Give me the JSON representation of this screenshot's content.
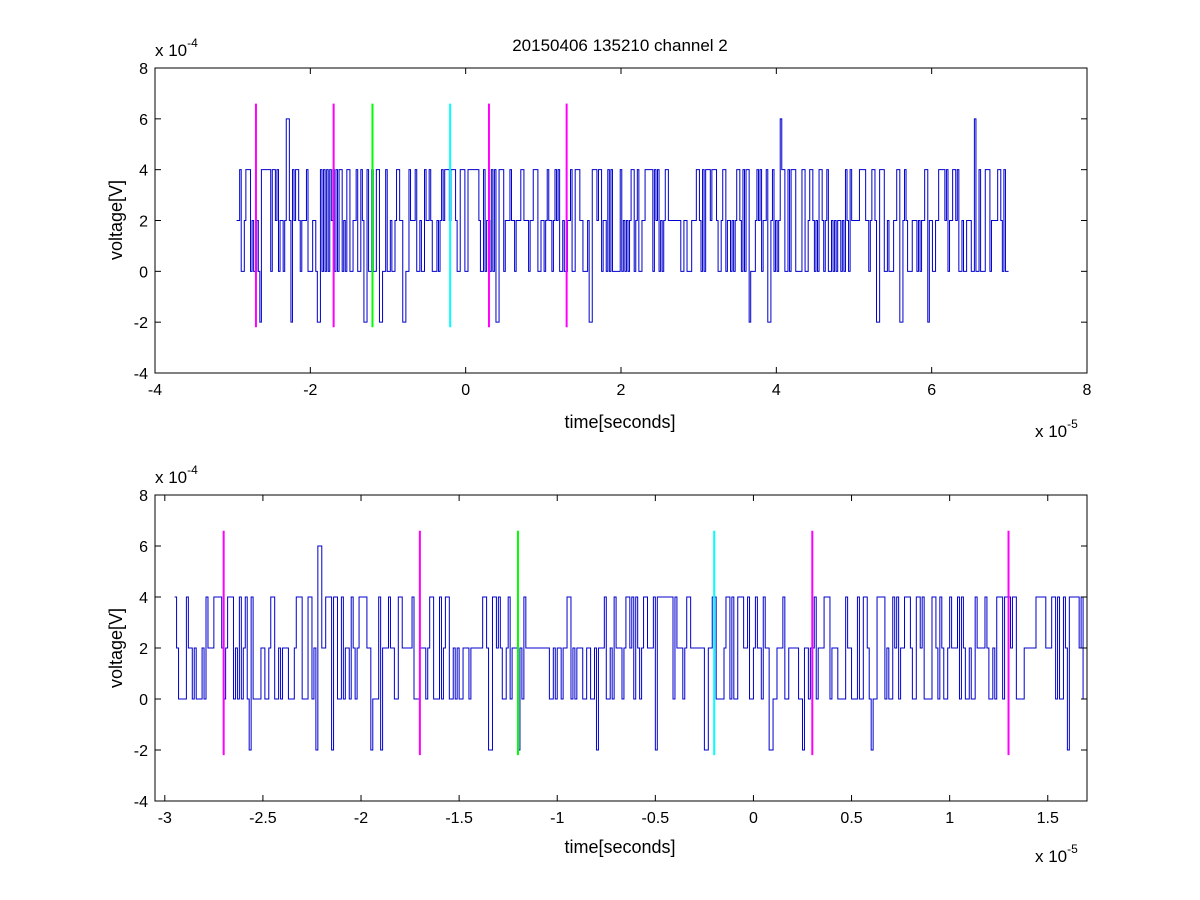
{
  "figure": {
    "title": "20150406 135210 channel 2",
    "trace_color": "#0000cc",
    "marker_colors": {
      "magenta": "#ff00ff",
      "green": "#00ff00",
      "cyan": "#00ffff"
    }
  },
  "chart_data": [
    {
      "type": "line",
      "title": "20150406 135210 channel 2",
      "xlabel": "time[seconds]",
      "ylabel": "voltage[V]",
      "x_multiplier": "x 10",
      "x_exponent": "-5",
      "y_multiplier": "x 10",
      "y_exponent": "-4",
      "xlim": [
        -4,
        8
      ],
      "ylim": [
        -4,
        8
      ],
      "xticks": [
        -4,
        -2,
        0,
        2,
        4,
        6,
        8
      ],
      "xtick_labels": [
        "-4",
        "-2",
        "0",
        "2",
        "4",
        "6",
        "8"
      ],
      "yticks": [
        -4,
        -2,
        0,
        2,
        4,
        6,
        8
      ],
      "ytick_labels": [
        "-4",
        "-2",
        "0",
        "2",
        "4",
        "6",
        "8"
      ],
      "grid": false,
      "series": [
        {
          "x_range": [
            -2.95,
            7.0
          ],
          "baseline": 2,
          "levels": [
            -2,
            0,
            2,
            4,
            6
          ],
          "sample_step": 0.02,
          "color": "#0000cc"
        }
      ],
      "spikes_up": [
        -2.3,
        4.05,
        6.55
      ],
      "spikes_down": [
        -2.65,
        -2.25,
        -1.9,
        -1.3,
        -1.1,
        -0.8,
        0.4,
        1.6,
        3.65,
        3.9,
        5.3,
        5.6,
        5.95
      ],
      "markers": [
        {
          "x": -2.7,
          "y_range": [
            -2.2,
            6.6
          ],
          "color": "#ff00ff"
        },
        {
          "x": -1.7,
          "y_range": [
            -2.2,
            6.6
          ],
          "color": "#ff00ff"
        },
        {
          "x": -1.2,
          "y_range": [
            -2.2,
            6.6
          ],
          "color": "#00ff00"
        },
        {
          "x": -0.2,
          "y_range": [
            -2.2,
            6.6
          ],
          "color": "#00ffff"
        },
        {
          "x": 0.3,
          "y_range": [
            -2.2,
            6.6
          ],
          "color": "#ff00ff"
        },
        {
          "x": 1.3,
          "y_range": [
            -2.2,
            6.6
          ],
          "color": "#ff00ff"
        }
      ]
    },
    {
      "type": "line",
      "title": "",
      "xlabel": "time[seconds]",
      "ylabel": "voltage[V]",
      "x_multiplier": "x 10",
      "x_exponent": "-5",
      "y_multiplier": "x 10",
      "y_exponent": "-4",
      "xlim": [
        -3.05,
        1.7
      ],
      "ylim": [
        -4,
        8
      ],
      "xticks": [
        -3,
        -2.5,
        -2,
        -1.5,
        -1,
        -0.5,
        0,
        0.5,
        1,
        1.5
      ],
      "xtick_labels": [
        "-3",
        "-2.5",
        "-2",
        "-1.5",
        "-1",
        "-0.5",
        "0",
        "0.5",
        "1",
        "1.5"
      ],
      "yticks": [
        -4,
        -2,
        0,
        2,
        4,
        6,
        8
      ],
      "ytick_labels": [
        "-4",
        "-2",
        "0",
        "2",
        "4",
        "6",
        "8"
      ],
      "grid": false,
      "series": [
        {
          "x_range": [
            -2.95,
            1.7
          ],
          "baseline": 2,
          "levels": [
            -2,
            0,
            2,
            4,
            6
          ],
          "sample_step": 0.01,
          "color": "#0000cc"
        }
      ],
      "spikes_up": [
        -2.22
      ],
      "spikes_down": [
        -2.57,
        -2.23,
        -2.15,
        -1.95,
        -1.9,
        -1.35,
        -1.2,
        -0.8,
        -0.5,
        -0.25,
        0.08,
        0.25,
        0.6,
        1.6
      ],
      "markers": [
        {
          "x": -2.7,
          "y_range": [
            -2.2,
            6.6
          ],
          "color": "#ff00ff"
        },
        {
          "x": -1.7,
          "y_range": [
            -2.2,
            6.6
          ],
          "color": "#ff00ff"
        },
        {
          "x": -1.2,
          "y_range": [
            -2.2,
            6.6
          ],
          "color": "#00ff00"
        },
        {
          "x": -0.2,
          "y_range": [
            -2.2,
            6.6
          ],
          "color": "#00ffff"
        },
        {
          "x": 0.3,
          "y_range": [
            -2.2,
            6.6
          ],
          "color": "#ff00ff"
        },
        {
          "x": 1.3,
          "y_range": [
            -2.2,
            6.6
          ],
          "color": "#ff00ff"
        }
      ]
    }
  ]
}
